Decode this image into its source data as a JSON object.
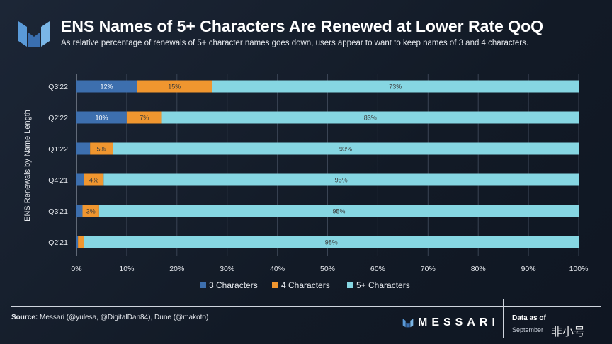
{
  "header": {
    "title": "ENS Names of 5+ Characters Are Renewed at Lower Rate QoQ",
    "subtitle": "As relative percentage of renewals of 5+ character names goes down, users appear to want to keep names of 3 and 4 characters."
  },
  "footer": {
    "source_label": "Source:",
    "source_text": " Messari (@yulesa, @DigitalDan84), Dune (@makoto)",
    "brand": "MESSARI",
    "data_as_of": "Data as of",
    "date": "September",
    "watermark": "非小号"
  },
  "colors": {
    "c3": "#3d6fae",
    "c4": "#f0962f",
    "c5": "#86d6e2"
  },
  "chart_data": {
    "type": "bar",
    "orientation": "horizontal",
    "stacked": true,
    "ylabel": "ENS Renewals by Name Length",
    "xlabel": "",
    "categories": [
      "Q3'22",
      "Q2'22",
      "Q1'22",
      "Q4'21",
      "Q3'21",
      "Q2'21"
    ],
    "series": [
      {
        "name": "3 Characters",
        "values": [
          12,
          10,
          2.7,
          1.5,
          1.2,
          0.3
        ],
        "labels": [
          "12%",
          "10%",
          "",
          "",
          "",
          ""
        ]
      },
      {
        "name": "4 Characters",
        "values": [
          15,
          7,
          4.5,
          3.9,
          3.3,
          1.2
        ],
        "labels": [
          "15%",
          "7%",
          "5%",
          "4%",
          "3%",
          ""
        ]
      },
      {
        "name": "5+ Characters",
        "values": [
          73,
          83,
          92.8,
          94.6,
          95.5,
          98.5
        ],
        "labels": [
          "73%",
          "83%",
          "93%",
          "95%",
          "95%",
          "98%"
        ]
      }
    ],
    "xlim": [
      0,
      100
    ],
    "xticks": [
      "0%",
      "10%",
      "20%",
      "30%",
      "40%",
      "50%",
      "60%",
      "70%",
      "80%",
      "90%",
      "100%"
    ],
    "legend": "bottom",
    "grid": true
  }
}
